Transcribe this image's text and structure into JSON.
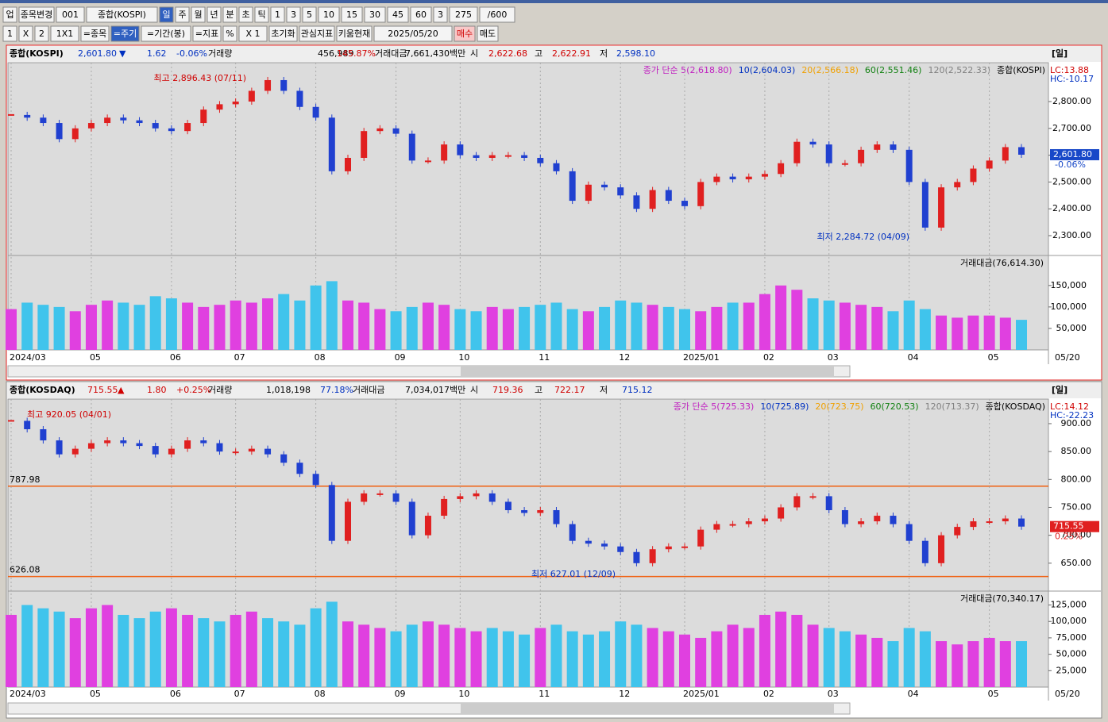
{
  "toolbar": {
    "row1": [
      "업",
      "종목변경",
      "001",
      "종합(KOSPI)",
      "일",
      "주",
      "월",
      "년",
      "분",
      "초",
      "틱",
      "1",
      "3",
      "5",
      "10",
      "15",
      "30",
      "45",
      "60",
      "3",
      "275",
      "/600"
    ],
    "row2": [
      "1",
      "X",
      "2",
      "1X1",
      "=종목",
      "=주기",
      "=기간(봉)",
      "=지표",
      "%",
      "X 1",
      "초기화",
      "관심지표",
      "키움현재",
      "2025/05/20",
      "매수",
      "매도"
    ]
  },
  "panels": [
    {
      "header": [
        {
          "text": "종합(KOSPI)",
          "color": "#000"
        },
        {
          "text": "2,601.80",
          "color": "#0030c0"
        },
        {
          "text": "▼",
          "color": "#0030c0"
        },
        {
          "text": "1.62",
          "color": "#0030c0"
        },
        {
          "text": "-0.06%",
          "color": "#0030c0"
        },
        {
          "text": "거래량",
          "color": "#000"
        },
        {
          "text": "456,989",
          "color": "#000"
        },
        {
          "text": "145.87%",
          "color": "#d00000"
        },
        {
          "text": "거래대금",
          "color": "#000"
        },
        {
          "text": "7,661,430백만",
          "color": "#000"
        },
        {
          "text": "시",
          "color": "#000"
        },
        {
          "text": "2,622.68",
          "color": "#d00000"
        },
        {
          "text": "고",
          "color": "#000"
        },
        {
          "text": "2,622.91",
          "color": "#d00000"
        },
        {
          "text": "저",
          "color": "#000"
        },
        {
          "text": "2,598.10",
          "color": "#0030c0"
        }
      ],
      "period": "[일]",
      "legend": [
        {
          "text": "종가 단순 5(2,618.80)",
          "color": "#c020c0"
        },
        {
          "text": "10(2,604.03)",
          "color": "#0030c0"
        },
        {
          "text": "20(2,566.18)",
          "color": "#f0a000"
        },
        {
          "text": "60(2,551.46)",
          "color": "#108010"
        },
        {
          "text": "120(2,522.33)",
          "color": "#808080"
        },
        {
          "text": "종합(KOSPI)",
          "color": "#000"
        }
      ],
      "lc": "LC:13.88",
      "hc": "HC:-10.17",
      "last_label": "2,601.80",
      "last_pct": "-0.06%",
      "last_color": "#1848c8",
      "annotations": [
        "최고 2,896.43 (07/11)",
        "최저 2,284.72 (04/09)"
      ],
      "levels": [],
      "ylim": [
        2226,
        2945
      ],
      "yticks": [
        {
          "value": 2300,
          "label": "2,300.00"
        },
        {
          "value": 2400,
          "label": "2,400.00"
        },
        {
          "value": 2500,
          "label": "2,500.00"
        },
        {
          "value": 2600,
          "label": "2,600.00"
        },
        {
          "value": 2700,
          "label": "2,700.00"
        },
        {
          "value": 2800,
          "label": "2,800.00"
        }
      ],
      "closes": [
        2750,
        2740,
        2720,
        2660,
        2700,
        2720,
        2740,
        2730,
        2720,
        2700,
        2690,
        2720,
        2770,
        2790,
        2800,
        2840,
        2880,
        2840,
        2780,
        2740,
        2540,
        2590,
        2690,
        2700,
        2680,
        2580,
        2580,
        2640,
        2600,
        2590,
        2600,
        2600,
        2590,
        2570,
        2540,
        2430,
        2490,
        2480,
        2450,
        2400,
        2470,
        2430,
        2410,
        2500,
        2520,
        2510,
        2520,
        2530,
        2570,
        2650,
        2640,
        2570,
        2570,
        2620,
        2640,
        2620,
        2500,
        2330,
        2480,
        2500,
        2550,
        2580,
        2630,
        2601.8
      ],
      "vol_legend": "거래대금(76,614.30)",
      "vlim": [
        0,
        218000
      ],
      "vticks": [
        {
          "value": 50000,
          "label": "50,000"
        },
        {
          "value": 100000,
          "label": "100,000"
        },
        {
          "value": 150000,
          "label": "150,000"
        }
      ],
      "volumes": [
        95000,
        110000,
        105000,
        100000,
        90000,
        105000,
        115000,
        110000,
        105000,
        125000,
        120000,
        110000,
        100000,
        105000,
        115000,
        110000,
        120000,
        130000,
        115000,
        150000,
        160000,
        115000,
        110000,
        95000,
        90000,
        100000,
        110000,
        105000,
        95000,
        90000,
        100000,
        95000,
        100000,
        105000,
        110000,
        95000,
        90000,
        100000,
        115000,
        110000,
        105000,
        100000,
        95000,
        90000,
        100000,
        110000,
        110000,
        130000,
        150000,
        140000,
        120000,
        115000,
        110000,
        105000,
        100000,
        90000,
        115000,
        95000,
        80000,
        75000,
        80000,
        80000,
        75000,
        70000
      ],
      "categories": [
        "2024/03",
        null,
        null,
        null,
        null,
        "05",
        null,
        null,
        null,
        null,
        "06",
        null,
        null,
        null,
        "07",
        null,
        null,
        null,
        null,
        "08",
        null,
        null,
        null,
        null,
        "09",
        null,
        null,
        null,
        "10",
        null,
        null,
        null,
        null,
        "11",
        null,
        null,
        null,
        null,
        "12",
        null,
        null,
        null,
        "2025/01",
        null,
        null,
        null,
        null,
        "02",
        null,
        null,
        null,
        "03",
        null,
        null,
        null,
        null,
        "04",
        null,
        null,
        null,
        null,
        "05",
        null,
        null
      ],
      "end_label": "05/20"
    },
    {
      "header": [
        {
          "text": "종합(KOSDAQ)",
          "color": "#000"
        },
        {
          "text": "715.55",
          "color": "#d00000"
        },
        {
          "text": "▲",
          "color": "#d00000"
        },
        {
          "text": "1.80",
          "color": "#d00000"
        },
        {
          "text": "+0.25%",
          "color": "#d00000"
        },
        {
          "text": "거래량",
          "color": "#000"
        },
        {
          "text": "1,018,198",
          "color": "#000"
        },
        {
          "text": "77.18%",
          "color": "#0030c0"
        },
        {
          "text": "거래대금",
          "color": "#000"
        },
        {
          "text": "7,034,017백만",
          "color": "#000"
        },
        {
          "text": "시",
          "color": "#000"
        },
        {
          "text": "719.36",
          "color": "#d00000"
        },
        {
          "text": "고",
          "color": "#000"
        },
        {
          "text": "722.17",
          "color": "#d00000"
        },
        {
          "text": "저",
          "color": "#000"
        },
        {
          "text": "715.12",
          "color": "#0030c0"
        }
      ],
      "period": "[일]",
      "legend": [
        {
          "text": "종가 단순 5(725.33)",
          "color": "#c020c0"
        },
        {
          "text": "10(725.89)",
          "color": "#0030c0"
        },
        {
          "text": "20(723.75)",
          "color": "#f0a000"
        },
        {
          "text": "60(720.53)",
          "color": "#108010"
        },
        {
          "text": "120(713.37)",
          "color": "#808080"
        },
        {
          "text": "종합(KOSDAQ)",
          "color": "#000"
        }
      ],
      "lc": "LC:14.12",
      "hc": "HC:-22.23",
      "last_label": "715.55",
      "last_pct": "0.25%",
      "last_color": "#e02020",
      "annotations": [
        "최고 920.05 (04/01)",
        "최저 627.01 (12/09)"
      ],
      "levels": [
        {
          "value": 787.98,
          "label": "787.98"
        },
        {
          "value": 626.08,
          "label": "626.08"
        }
      ],
      "ylim": [
        600,
        944
      ],
      "yticks": [
        {
          "value": 650,
          "label": "650.00"
        },
        {
          "value": 700,
          "label": "700.00"
        },
        {
          "value": 750,
          "label": "750.00"
        },
        {
          "value": 800,
          "label": "800.00"
        },
        {
          "value": 850,
          "label": "850.00"
        },
        {
          "value": 900,
          "label": "900.00"
        }
      ],
      "closes": [
        905,
        890,
        870,
        845,
        855,
        865,
        870,
        865,
        860,
        845,
        855,
        870,
        865,
        850,
        850,
        855,
        845,
        830,
        810,
        790,
        690,
        760,
        775,
        775,
        760,
        700,
        735,
        765,
        770,
        775,
        760,
        745,
        740,
        745,
        720,
        690,
        685,
        680,
        670,
        650,
        675,
        680,
        680,
        710,
        720,
        720,
        725,
        730,
        750,
        770,
        770,
        745,
        720,
        725,
        735,
        720,
        690,
        650,
        700,
        715,
        725,
        725,
        730,
        715.55
      ],
      "vol_legend": "거래대금(70,340.17)",
      "vlim": [
        0,
        145000
      ],
      "vticks": [
        {
          "value": 25000,
          "label": "25,000"
        },
        {
          "value": 50000,
          "label": "50,000"
        },
        {
          "value": 75000,
          "label": "75,000"
        },
        {
          "value": 100000,
          "label": "100,000"
        },
        {
          "value": 125000,
          "label": "125,000"
        }
      ],
      "volumes": [
        110000,
        125000,
        120000,
        115000,
        105000,
        120000,
        125000,
        110000,
        105000,
        115000,
        120000,
        110000,
        105000,
        100000,
        110000,
        115000,
        105000,
        100000,
        95000,
        120000,
        130000,
        100000,
        95000,
        90000,
        85000,
        95000,
        100000,
        95000,
        90000,
        85000,
        90000,
        85000,
        80000,
        90000,
        95000,
        85000,
        80000,
        85000,
        100000,
        95000,
        90000,
        85000,
        80000,
        75000,
        85000,
        95000,
        90000,
        110000,
        115000,
        110000,
        95000,
        90000,
        85000,
        80000,
        75000,
        70000,
        90000,
        85000,
        70000,
        65000,
        70000,
        75000,
        70000,
        70000
      ],
      "categories": [
        "2024/03",
        null,
        null,
        null,
        null,
        "05",
        null,
        null,
        null,
        null,
        "06",
        null,
        null,
        null,
        "07",
        null,
        null,
        null,
        null,
        "08",
        null,
        null,
        null,
        null,
        "09",
        null,
        null,
        null,
        "10",
        null,
        null,
        null,
        null,
        "11",
        null,
        null,
        null,
        null,
        "12",
        null,
        null,
        null,
        "2025/01",
        null,
        null,
        null,
        null,
        "02",
        null,
        null,
        null,
        "03",
        null,
        null,
        null,
        null,
        "04",
        null,
        null,
        null,
        null,
        "05",
        null,
        null
      ],
      "end_label": "05/20"
    }
  ]
}
